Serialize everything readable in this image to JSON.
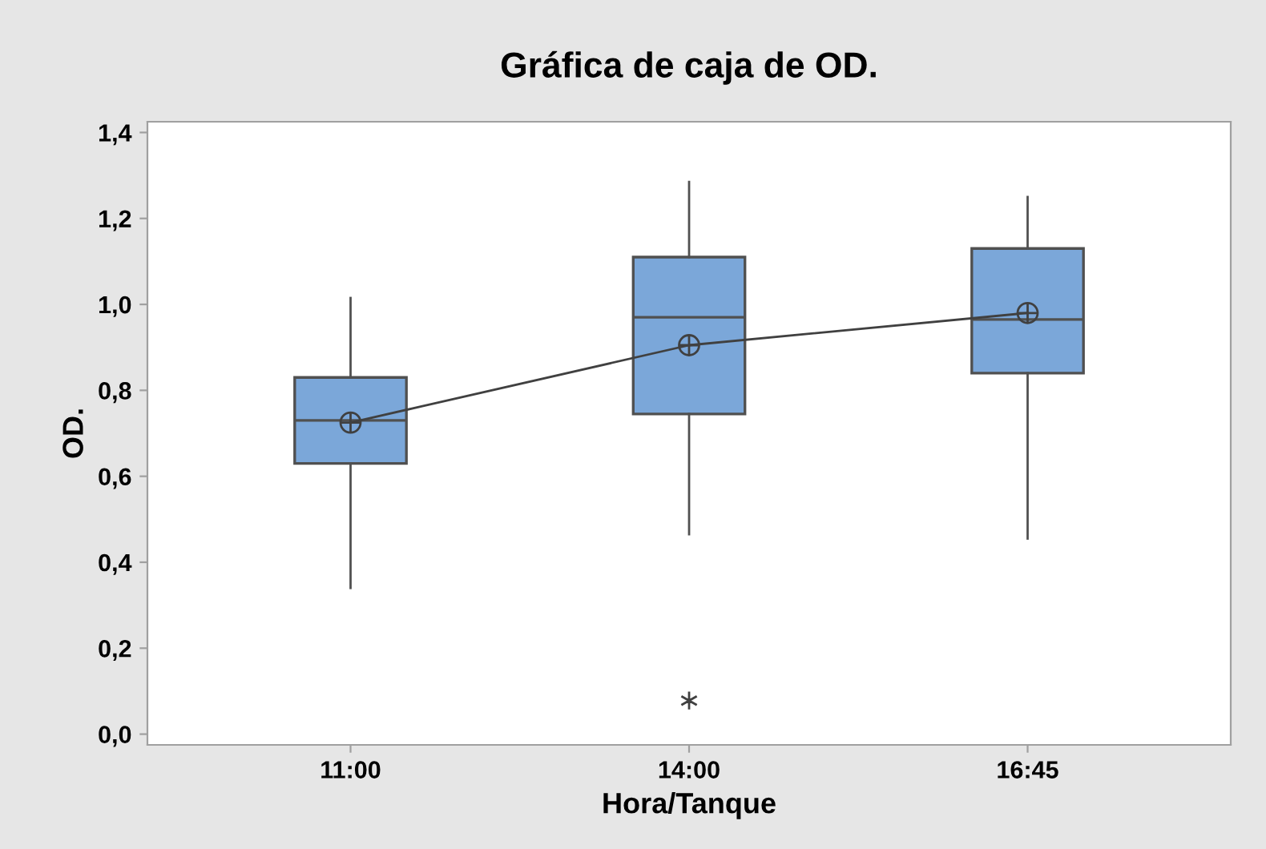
{
  "chart_data": {
    "type": "box",
    "title": "Gráfica de caja de OD.",
    "xlabel": "Hora/Tanque",
    "ylabel": "OD.",
    "categories": [
      "11:00",
      "14:00",
      "16:45"
    ],
    "color": "#7ba7d9",
    "boxes": [
      {
        "low": 0.34,
        "q1": 0.63,
        "median": 0.73,
        "q3": 0.83,
        "high": 1.015,
        "mean": 0.725
      },
      {
        "low": 0.465,
        "q1": 0.745,
        "median": 0.97,
        "q3": 1.11,
        "high": 1.285,
        "mean": 0.905,
        "outliers": [
          0.078
        ]
      },
      {
        "low": 0.455,
        "q1": 0.84,
        "median": 0.965,
        "q3": 1.13,
        "high": 1.25,
        "mean": 0.98
      }
    ],
    "series": [
      {
        "type": "line",
        "color": "#404040",
        "values": [
          0.725,
          0.905,
          0.98
        ],
        "marker": "none"
      }
    ],
    "ylim": [
      -0.025,
      1.425
    ],
    "yticks": [
      {
        "value": 0,
        "label": "0,0"
      },
      {
        "value": 0.2,
        "label": "0,2"
      },
      {
        "value": 0.4,
        "label": "0,4"
      },
      {
        "value": 0.6,
        "label": "0,6"
      },
      {
        "value": 0.8,
        "label": "0,8"
      },
      {
        "value": 1.0,
        "label": "1,0"
      },
      {
        "value": 1.2,
        "label": "1,2"
      },
      {
        "value": 1.4,
        "label": "1,4"
      }
    ],
    "grid": false,
    "legend": false
  }
}
